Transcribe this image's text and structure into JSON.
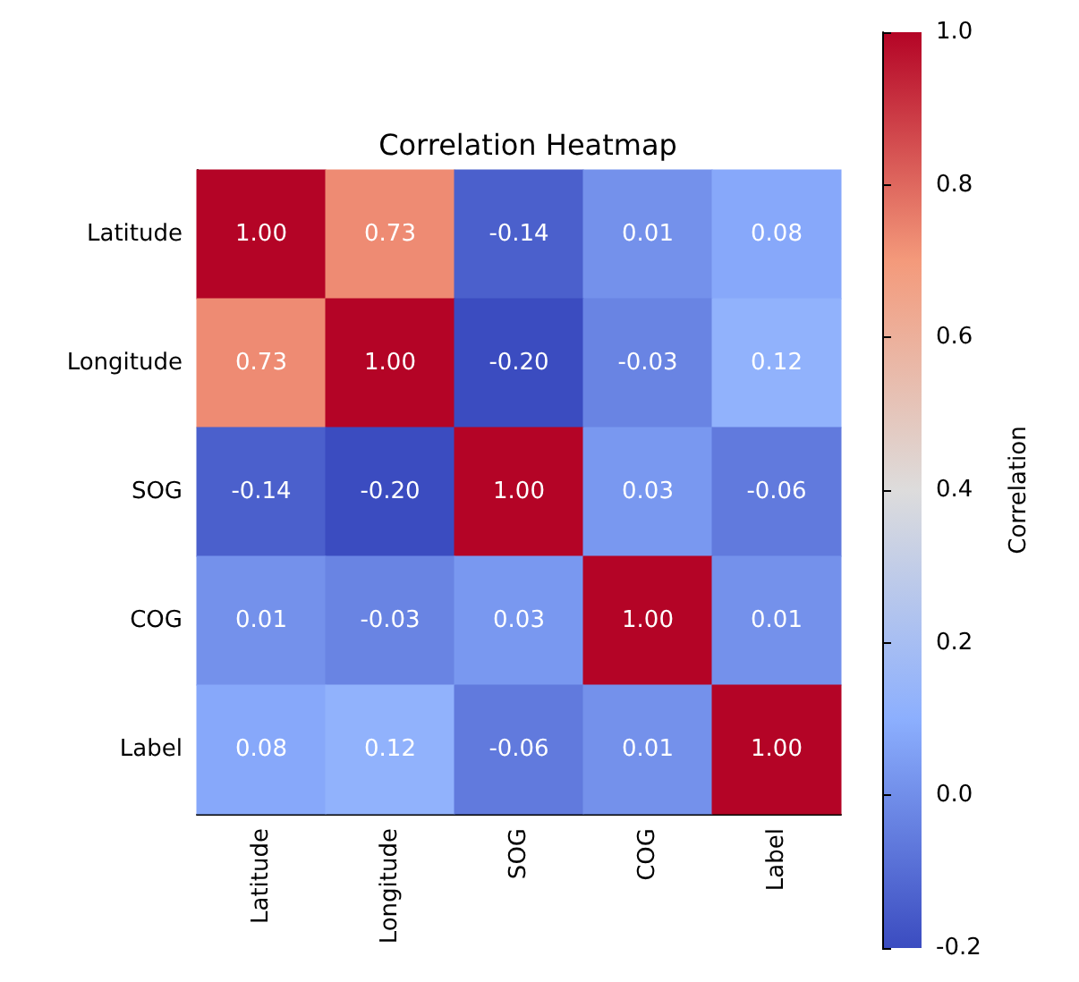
{
  "chart_data": {
    "type": "heatmap",
    "title": "Correlation Heatmap",
    "clabel": "Correlation",
    "categories": [
      "Latitude",
      "Longitude",
      "SOG",
      "COG",
      "Label"
    ],
    "y_categories": [
      "Latitude",
      "Longitude",
      "SOG",
      "COG",
      "Label"
    ],
    "cells": [
      [
        1.0,
        0.73,
        -0.14,
        0.01,
        0.08
      ],
      [
        0.73,
        1.0,
        -0.2,
        -0.03,
        0.12
      ],
      [
        -0.14,
        -0.2,
        1.0,
        0.03,
        -0.06
      ],
      [
        0.01,
        -0.03,
        0.03,
        1.0,
        0.01
      ],
      [
        0.08,
        0.12,
        -0.06,
        0.01,
        1.0
      ]
    ],
    "cell_labels": [
      [
        "1.00",
        "0.73",
        "-0.14",
        "0.01",
        "0.08"
      ],
      [
        "0.73",
        "1.00",
        "-0.20",
        "-0.03",
        "0.12"
      ],
      [
        "-0.14",
        "-0.20",
        "1.00",
        "0.03",
        "-0.06"
      ],
      [
        "0.01",
        "-0.03",
        "0.03",
        "1.00",
        "0.01"
      ],
      [
        "0.08",
        "0.12",
        "-0.06",
        "0.01",
        "1.00"
      ]
    ],
    "clim": [
      -0.2,
      1.0
    ],
    "cticks": [
      -0.2,
      {
        "value": 0,
        "label": "0.0"
      },
      0.2,
      0.4,
      0.6,
      0.8,
      {
        "value": 1,
        "label": "1.0"
      }
    ]
  }
}
